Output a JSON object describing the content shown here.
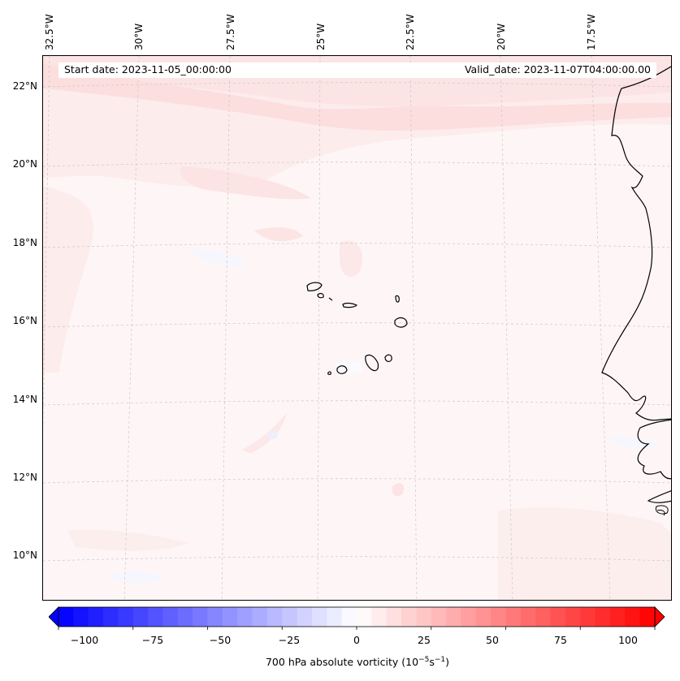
{
  "map": {
    "start_date": "Start date: 2023-11-05_00:00:00",
    "valid_date": "Valid_date: 2023-11-07T04:00:00.00",
    "lon_labels": [
      "32.5°W",
      "30°W",
      "27.5°W",
      "25°W",
      "22.5°W",
      "20°W",
      "17.5°W"
    ],
    "lat_labels": [
      "22°N",
      "20°N",
      "18°N",
      "16°N",
      "14°N",
      "12°N",
      "10°N"
    ],
    "grid": true,
    "features": [
      "Cape Verde islands",
      "West African coastline"
    ]
  },
  "colorbar": {
    "ticks": [
      "−100",
      "−75",
      "−50",
      "−25",
      "0",
      "25",
      "50",
      "75",
      "100"
    ],
    "range": [
      -100,
      100
    ],
    "step": 5,
    "cmap": "bwr",
    "colors": {
      "min": "#0000ff",
      "mid": "#ffffff",
      "max": "#ff0000"
    },
    "label_prefix": "700 hPa absolute vorticity (10",
    "label_exp1": "−5",
    "label_mid": "s",
    "label_exp2": "−1",
    "label_suffix": ")"
  }
}
